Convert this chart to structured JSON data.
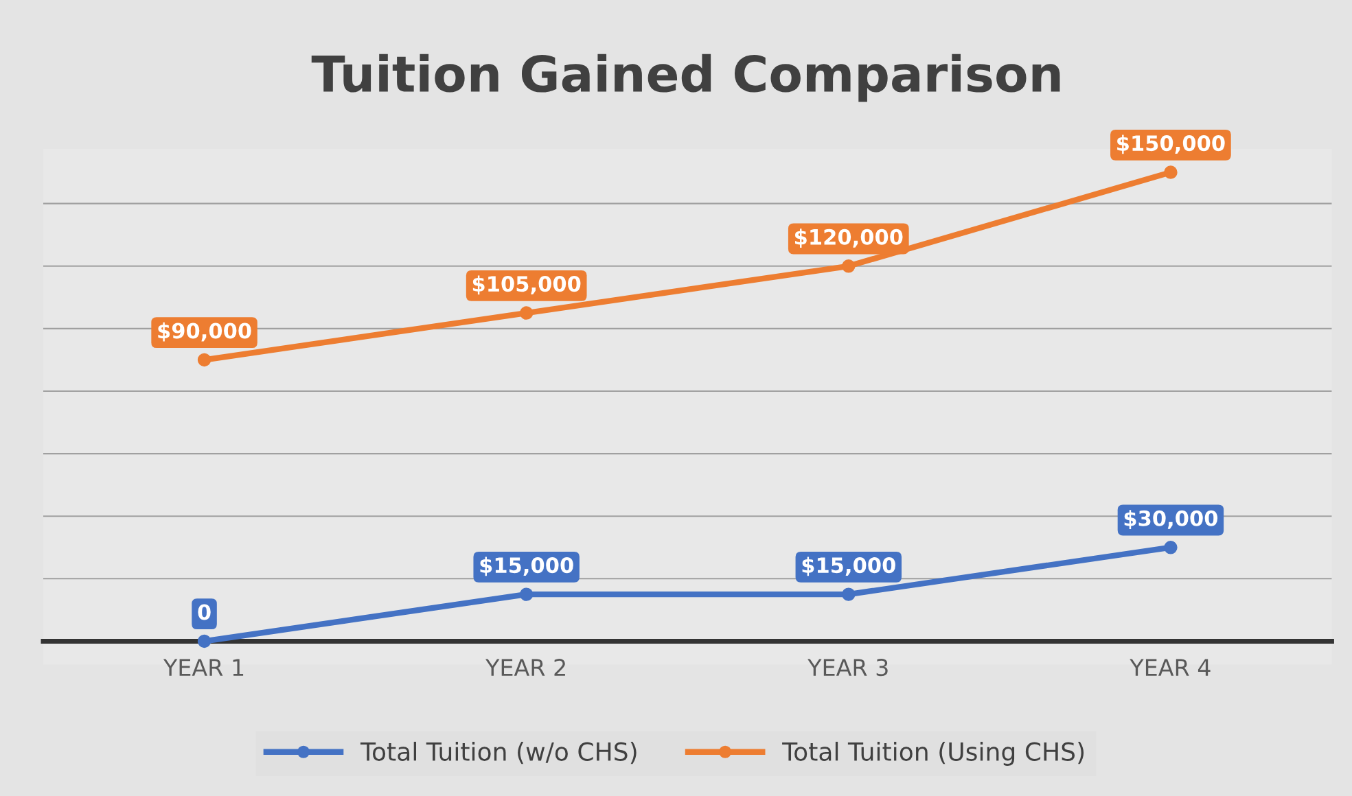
{
  "chart_data": {
    "type": "line",
    "title": "Tuition Gained Comparison",
    "categories": [
      "YEAR 1",
      "YEAR 2",
      "YEAR 3",
      "YEAR 4"
    ],
    "series": [
      {
        "name": "Total Tuition (w/o CHS)",
        "color": "#4472c4",
        "values": [
          0,
          15000,
          15000,
          30000
        ],
        "value_labels": [
          "0",
          "$15,000",
          "$15,000",
          "$30,000"
        ]
      },
      {
        "name": "Total Tuition (Using CHS)",
        "color": "#ed7d31",
        "values": [
          90000,
          105000,
          120000,
          150000
        ],
        "value_labels": [
          "$90,000",
          "$105,000",
          "$120,000",
          "$150,000"
        ]
      }
    ],
    "grid": "y",
    "legend": "bottom",
    "marker": "circle",
    "line_style": "solid",
    "tick_labels": "x"
  }
}
